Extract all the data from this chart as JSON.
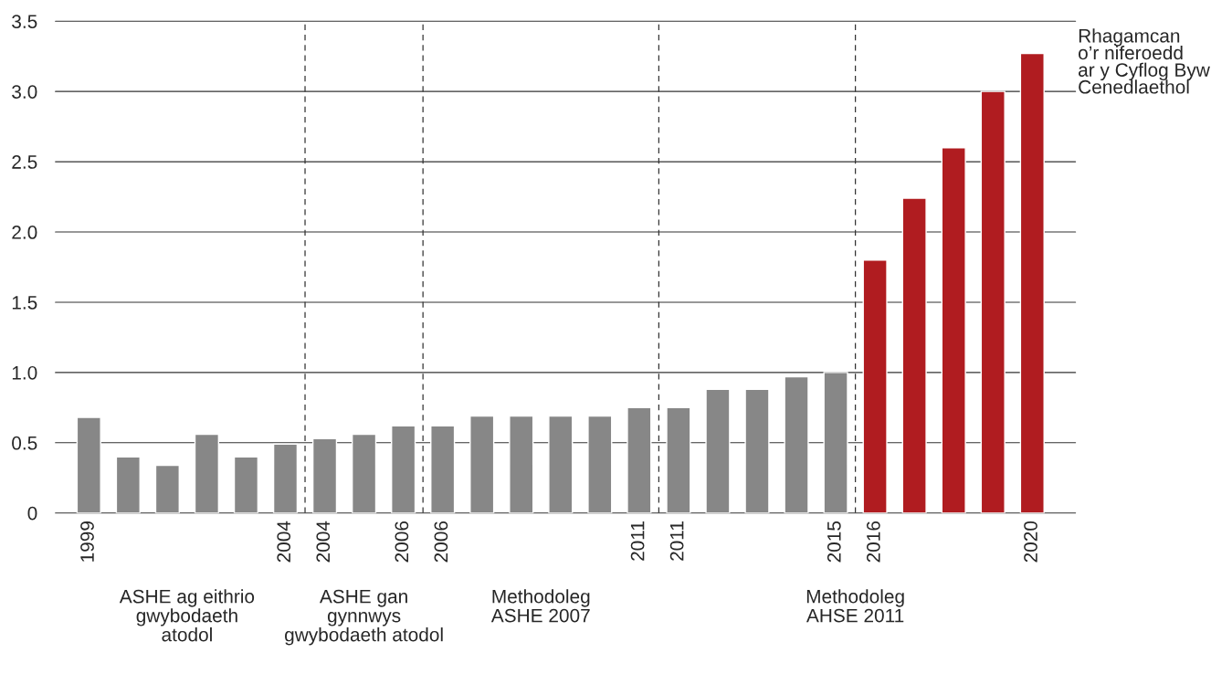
{
  "chart_data": {
    "type": "bar",
    "categories": [
      "1999",
      null,
      null,
      null,
      null,
      "2004",
      "2004",
      null,
      "2006",
      "2006",
      null,
      null,
      null,
      null,
      "2011",
      "2011",
      null,
      null,
      null,
      "2015",
      "2016",
      null,
      null,
      null,
      "2020"
    ],
    "values": [
      0.68,
      0.4,
      0.34,
      0.56,
      0.4,
      0.49,
      0.53,
      0.56,
      0.62,
      0.62,
      0.69,
      0.69,
      0.69,
      0.69,
      0.75,
      0.75,
      0.88,
      0.88,
      0.97,
      1.0,
      1.8,
      2.24,
      2.6,
      3.0,
      3.27
    ],
    "colors": [
      "#878787",
      "#878787",
      "#878787",
      "#878787",
      "#878787",
      "#878787",
      "#878787",
      "#878787",
      "#878787",
      "#878787",
      "#878787",
      "#878787",
      "#878787",
      "#878787",
      "#878787",
      "#878787",
      "#878787",
      "#878787",
      "#878787",
      "#878787",
      "#b01c20",
      "#b01c20",
      "#b01c20",
      "#b01c20",
      "#b01c20"
    ],
    "ylim": [
      0,
      3.5
    ],
    "yticks": [
      0,
      0.5,
      {
        "value": 1,
        "label": "1.0"
      },
      1.5,
      {
        "value": 2,
        "label": "2.0"
      },
      2.5,
      {
        "value": 3,
        "label": "3.0"
      },
      3.5
    ],
    "grid": "y",
    "annotations": [
      "ASHE ag eithrio\ngwybodaeth\natodol",
      "ASHE gan\ngynnwys\ngwybodaeth atodol",
      "Methodoleg\nASHE 2007",
      "Methodoleg\nAHSE 2011",
      "Rhagamcan\no’r niferoedd\nar y Cyflog Byw\nCenedlaethol"
    ]
  }
}
